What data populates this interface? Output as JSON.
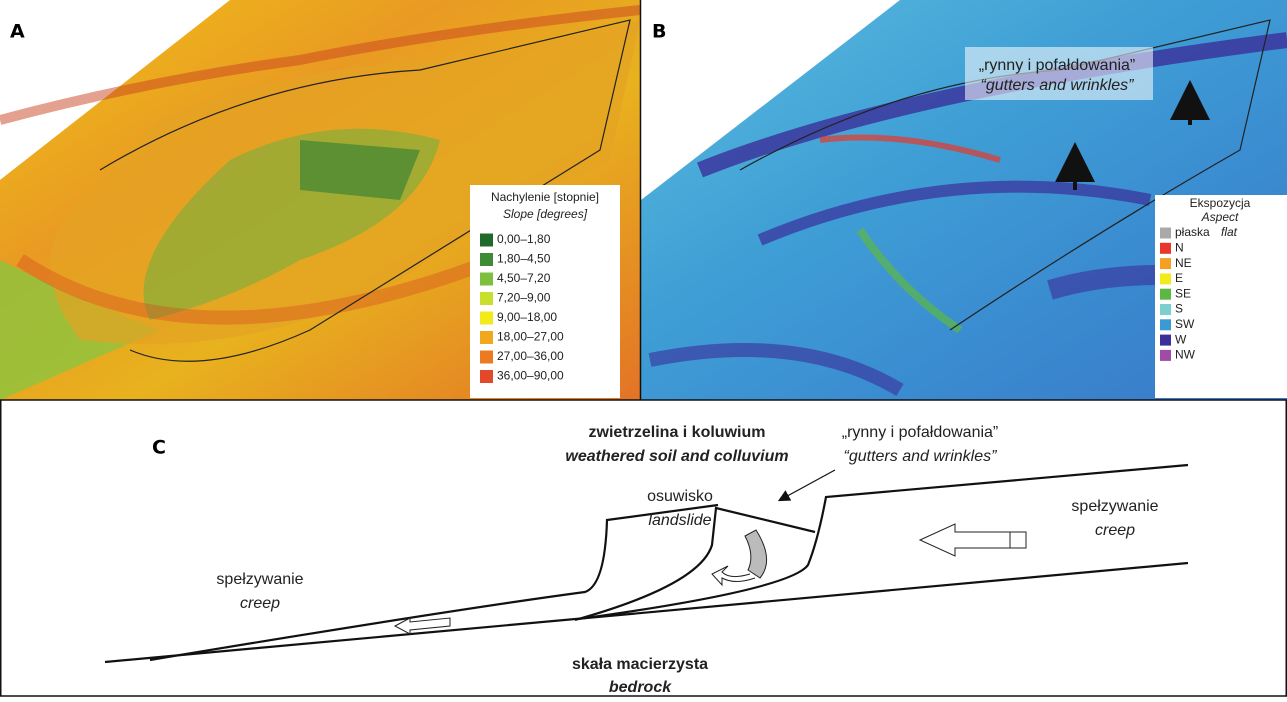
{
  "panels": {
    "a": {
      "label": "A",
      "legend": {
        "title": "Nachylenie [stopnie]",
        "subtitle": "Slope [degrees]",
        "items": [
          {
            "label": "0,00–1,80",
            "color": "#1f6a2b"
          },
          {
            "label": "1,80–4,50",
            "color": "#3f8a34"
          },
          {
            "label": "4,50–7,20",
            "color": "#7fbf3f"
          },
          {
            "label": "7,20–9,00",
            "color": "#c9df2e"
          },
          {
            "label": "9,00–18,00",
            "color": "#f3ea1c"
          },
          {
            "label": "18,00–27,00",
            "color": "#f2a81c"
          },
          {
            "label": "27,00–36,00",
            "color": "#ec7a22"
          },
          {
            "label": "36,00–90,00",
            "color": "#e3482a"
          }
        ]
      }
    },
    "b": {
      "label": "B",
      "annotation": {
        "pl": "„rynny i pofałdowania”",
        "en": "“gutters and wrinkles”"
      },
      "legend": {
        "title": "Ekspozycja",
        "subtitle": "Aspect",
        "items": [
          {
            "label": "płaska",
            "label_en": "flat",
            "color": "#a9a9a9"
          },
          {
            "label": "N",
            "color": "#e8382a"
          },
          {
            "label": "NE",
            "color": "#f5a021"
          },
          {
            "label": "E",
            "color": "#f3ea1c"
          },
          {
            "label": "SE",
            "color": "#5cb845"
          },
          {
            "label": "S",
            "color": "#7dcfcf"
          },
          {
            "label": "SW",
            "color": "#3a9ad6"
          },
          {
            "label": "W",
            "color": "#3b2f9a"
          },
          {
            "label": "NW",
            "color": "#a04ba6"
          }
        ]
      }
    },
    "c": {
      "label": "C",
      "soil": {
        "pl": "zwietrzelina i koluwium",
        "en": "weathered soil and colluvium"
      },
      "gutters": {
        "pl": "„rynny i pofałdowania”",
        "en": "“gutters and wrinkles”"
      },
      "landslide": {
        "pl": "osuwisko",
        "en": "landslide"
      },
      "creep_right": {
        "pl": "spełzywanie",
        "en": "creep"
      },
      "creep_left": {
        "pl": "spełzywanie",
        "en": "creep"
      },
      "bedrock": {
        "pl": "skała macierzysta",
        "en": "bedrock"
      }
    }
  }
}
